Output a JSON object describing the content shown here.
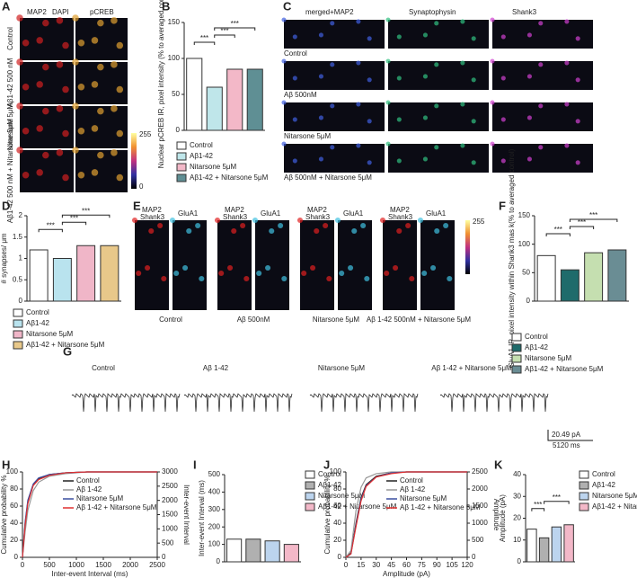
{
  "letters": [
    "A",
    "B",
    "C",
    "D",
    "E",
    "F",
    "G",
    "H",
    "I",
    "J",
    "K"
  ],
  "panels": {
    "A": {
      "headers": [
        "MAP2",
        "DAPI",
        "pCREB"
      ],
      "rows": [
        "Control",
        "Aβ1-42 500 nM",
        "Nitarsone 5μM",
        "Aβ1-42 500 nM + Nitarsone 5μM"
      ],
      "scale": [
        "255",
        "0"
      ]
    },
    "C": {
      "headers": [
        "merged+MAP2",
        "Synaptophysin",
        "Shank3"
      ],
      "rows": [
        "Control",
        "Aβ 500nM",
        "Nitarsone 5μM",
        "Aβ 500nM + Nitarsone 5μM"
      ]
    },
    "E": {
      "headers": [
        "MAP2",
        "Shank3",
        "GluA1"
      ],
      "groups": [
        "Control",
        "Aβ 500nM",
        "Nitarsone 5μM",
        "Aβ 1-42 500nM + Nitarsone 5μM"
      ],
      "scale": [
        "255"
      ]
    },
    "G": {
      "labels": [
        "Control",
        "Aβ 1-42",
        "Nitarsone 5μM",
        "Aβ 1-42 + Nitarsone 5μM"
      ],
      "scale": [
        "20.49 pA",
        "5120 ms"
      ]
    }
  },
  "chart_data": [
    {
      "type": "bar",
      "ylabel": "Nuclear pCREB IR, pixel intensity (% to averaged control)",
      "categories": [
        "Control",
        "Aβ1-42",
        "Nitarsone 5μM",
        "Aβ1-42 + Nitarsone 5μM"
      ],
      "values": [
        100,
        60,
        85,
        85
      ],
      "colors": [
        "#ffffff",
        "#bfe6ea",
        "#f3b8c8",
        "#5f8f94"
      ],
      "ylim": [
        0,
        150
      ],
      "yticks": [
        0,
        50,
        100,
        150
      ],
      "annotations": [
        "***",
        "***",
        "***"
      ]
    },
    {
      "type": "bar",
      "ylabel": "# synapses/ μm",
      "categories": [
        "Control",
        "Aβ1-42",
        "Nitarsone 5μM",
        "Aβ1-42 + Nitarsone 5μM"
      ],
      "values": [
        1.2,
        1.0,
        1.3,
        1.3
      ],
      "colors": [
        "#ffffff",
        "#b9e3ee",
        "#f0b6c8",
        "#e8c88a"
      ],
      "ylim": [
        0,
        2
      ],
      "yticks": [
        0,
        0.5,
        1,
        1.5,
        2
      ],
      "annotations": [
        "***",
        "***",
        "***"
      ]
    },
    {
      "type": "bar",
      "ylabel": "GluA1 IR, pixel intensity within Shank3 mas k(% to averaged control)",
      "categories": [
        "Control",
        "Aβ1-42",
        "Nitarsone 5μM",
        "Aβ1-42 + Nitarsone 5μM"
      ],
      "values": [
        80,
        55,
        85,
        90
      ],
      "colors": [
        "#ffffff",
        "#1f6b6b",
        "#c5dfb0",
        "#6a8d94"
      ],
      "ylim": [
        0,
        150
      ],
      "yticks": [
        0,
        50,
        100,
        150
      ],
      "annotations": [
        "***",
        "***",
        "***"
      ]
    },
    {
      "type": "line",
      "xlabel": "Inter-event Interval (ms)",
      "ylabel": "Cumulative probability %",
      "y2label": "Inter-event Interval",
      "x": [
        0,
        50,
        100,
        200,
        300,
        500,
        800,
        1200,
        2500
      ],
      "series": [
        {
          "name": "Control",
          "color": "#222222",
          "values": [
            0,
            40,
            65,
            85,
            92,
            97,
            99,
            100,
            100
          ]
        },
        {
          "name": "Aβ 1-42",
          "color": "#999999",
          "values": [
            0,
            30,
            55,
            78,
            88,
            95,
            98,
            100,
            100
          ]
        },
        {
          "name": "Nitarsone 5μM",
          "color": "#3a4fa0",
          "values": [
            0,
            42,
            67,
            86,
            93,
            97,
            99,
            100,
            100
          ]
        },
        {
          "name": "Aβ 1-42 + Nitarsone 5μM",
          "color": "#e03030",
          "values": [
            0,
            38,
            63,
            84,
            91,
            96,
            99,
            100,
            100
          ]
        }
      ],
      "xlim": [
        0,
        2500
      ],
      "xticks": [
        0,
        500,
        1000,
        1500,
        2000,
        2500
      ],
      "ylim": [
        0,
        100
      ],
      "yticks": [
        0,
        20,
        40,
        60,
        80,
        100
      ],
      "y2lim": [
        0,
        3000
      ],
      "y2ticks": [
        0,
        500,
        1000,
        1500,
        2000,
        2500,
        3000
      ]
    },
    {
      "type": "bar",
      "ylabel": "Inter-event Interval (ms)",
      "categories": [
        "Control",
        "Aβ1-42",
        "Nitarsone 5μM",
        "Aβ1-42 + Nitarsone 5μM"
      ],
      "values": [
        130,
        130,
        120,
        100
      ],
      "colors": [
        "#ffffff",
        "#b0b0b0",
        "#bcd4ee",
        "#f3b8c8"
      ],
      "ylim": [
        0,
        500
      ],
      "yticks": [
        0,
        100,
        200,
        300,
        400,
        500
      ],
      "annotations": []
    },
    {
      "type": "line",
      "xlabel": "Amplitude (pA)",
      "ylabel": "Cumulative probability %",
      "y2label": "Amplitude",
      "x": [
        0,
        5,
        10,
        15,
        20,
        30,
        45,
        60,
        120
      ],
      "series": [
        {
          "name": "Control",
          "color": "#222222",
          "values": [
            0,
            5,
            40,
            70,
            85,
            95,
            99,
            100,
            100
          ]
        },
        {
          "name": "Aβ 1-42",
          "color": "#999999",
          "values": [
            0,
            8,
            55,
            82,
            93,
            98,
            100,
            100,
            100
          ]
        },
        {
          "name": "Nitarsone 5μM",
          "color": "#3a4fa0",
          "values": [
            0,
            4,
            38,
            68,
            84,
            94,
            99,
            100,
            100
          ]
        },
        {
          "name": "Aβ 1-42 + Nitarsone 5μM",
          "color": "#e03030",
          "values": [
            0,
            4,
            36,
            66,
            83,
            94,
            98,
            100,
            100
          ]
        }
      ],
      "xlim": [
        0,
        120
      ],
      "xticks": [
        0,
        15,
        30,
        45,
        60,
        75,
        90,
        105,
        120
      ],
      "ylim": [
        0,
        100
      ],
      "yticks": [
        0,
        20,
        40,
        60,
        80,
        100
      ],
      "y2lim": [
        0,
        2500
      ],
      "y2ticks": [
        0,
        500,
        1000,
        1500,
        2000,
        2500
      ]
    },
    {
      "type": "bar",
      "ylabel": "Amplitude (pA)",
      "categories": [
        "Control",
        "Aβ1-42",
        "Nitarsone 5μM",
        "Aβ1-42 + Nitarsone 5μM"
      ],
      "values": [
        15,
        11,
        16,
        17
      ],
      "colors": [
        "#ffffff",
        "#b0b0b0",
        "#bcd4ee",
        "#f3b8c8"
      ],
      "ylim": [
        0,
        40
      ],
      "yticks": [
        0,
        10,
        20,
        30,
        40
      ],
      "annotations": [
        "***",
        "***"
      ]
    }
  ]
}
